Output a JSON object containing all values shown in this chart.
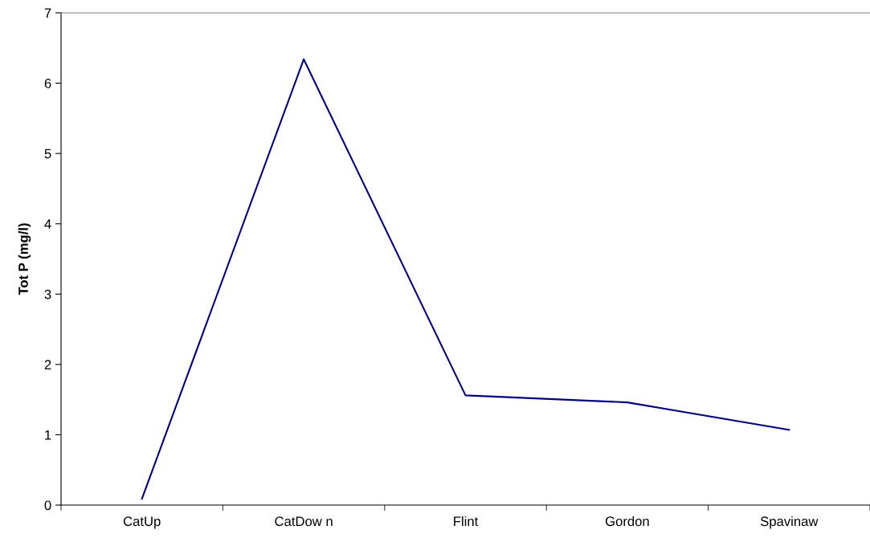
{
  "chart_data": {
    "type": "line",
    "ylabel": "Tot P (mg/l)",
    "categories": [
      "CatUp",
      "CatDow n",
      "Flint",
      "Gordon",
      "Spavinaw"
    ],
    "series": [
      {
        "color": "#000080",
        "values": [
          0.09,
          6.34,
          1.56,
          1.46,
          1.07
        ]
      }
    ],
    "ylim": [
      0,
      7
    ],
    "yticks": [
      0,
      1,
      2,
      3,
      4,
      5,
      6,
      7
    ],
    "grid": false,
    "marker": "none",
    "line_style": "solid"
  }
}
